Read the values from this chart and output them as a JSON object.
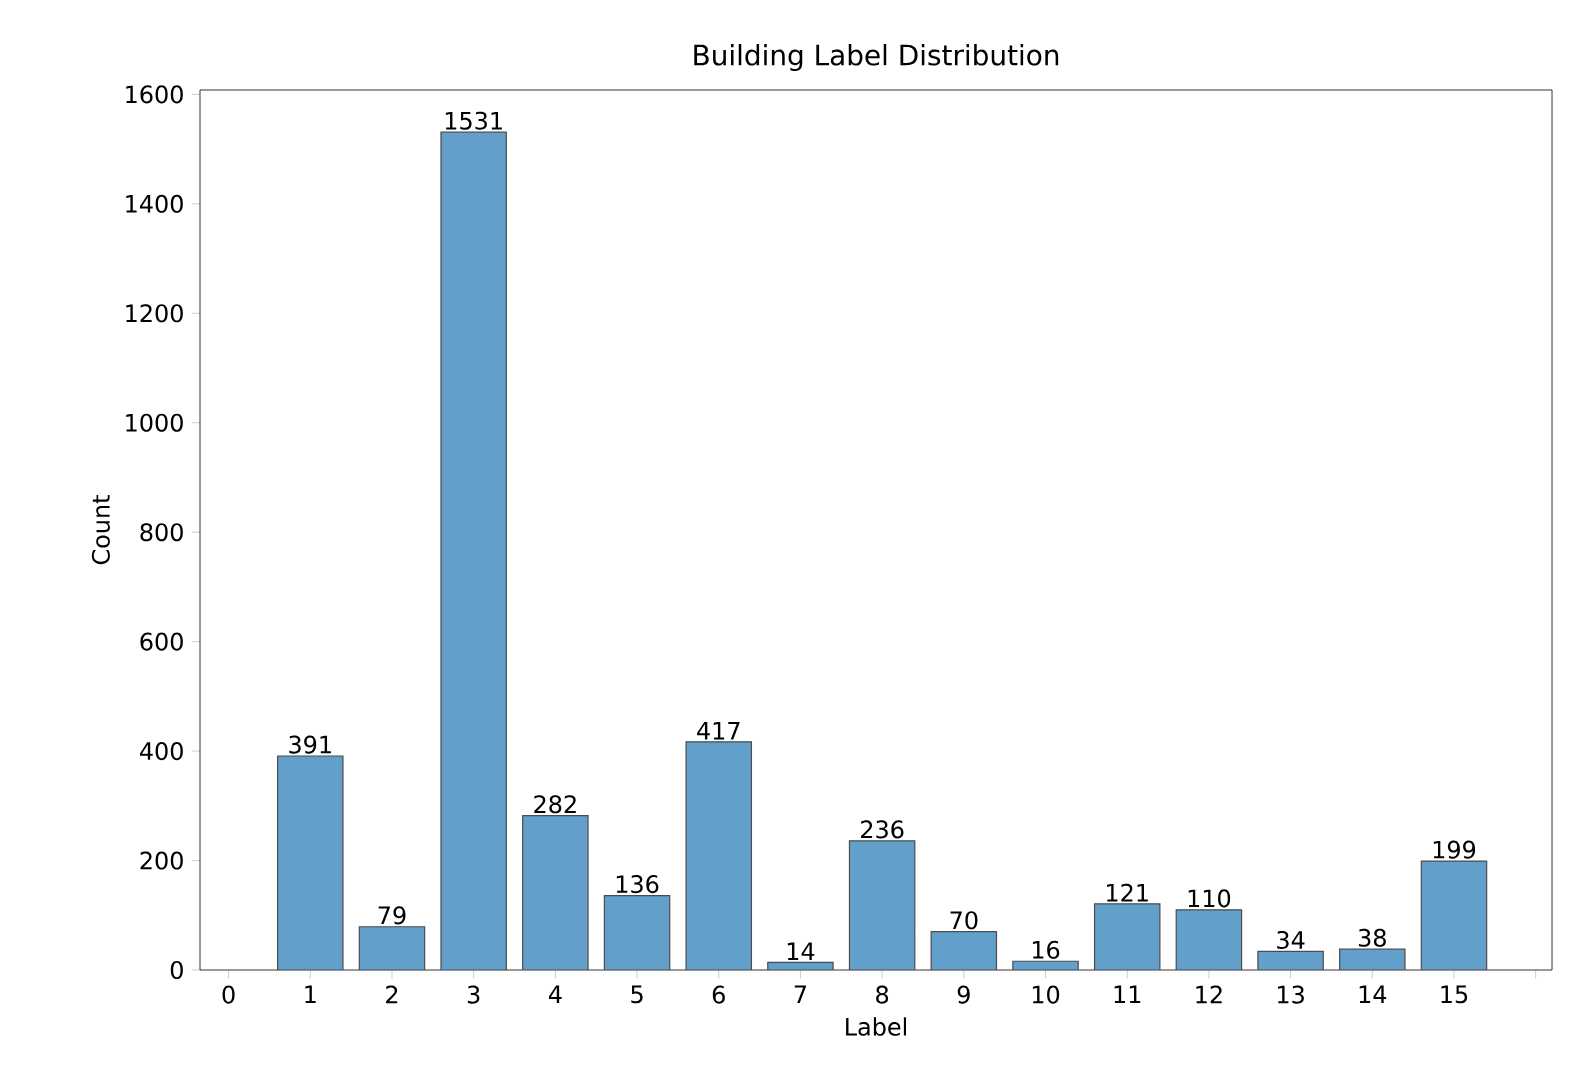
{
  "chart_data": {
    "type": "bar",
    "title": "Building Label Distribution",
    "xlabel": "Label",
    "ylabel": "Count",
    "x": [
      1,
      2,
      3,
      4,
      5,
      6,
      7,
      8,
      9,
      10,
      11,
      12,
      13,
      14,
      15
    ],
    "values": [
      391,
      79,
      1531,
      282,
      136,
      417,
      14,
      236,
      70,
      16,
      121,
      110,
      34,
      38,
      199
    ],
    "color": "#629fca",
    "data_labels": true,
    "xlim": [
      -0.35,
      16.2
    ],
    "ylim": [
      0,
      1608
    ],
    "xticks": [
      0,
      1,
      2,
      3,
      4,
      5,
      6,
      7,
      8,
      9,
      10,
      11,
      12,
      13,
      14,
      15,
      {
        "value": 16,
        "label": null
      }
    ],
    "yticks": [
      0,
      200,
      400,
      600,
      800,
      1000,
      1200,
      1400,
      1600
    ]
  }
}
